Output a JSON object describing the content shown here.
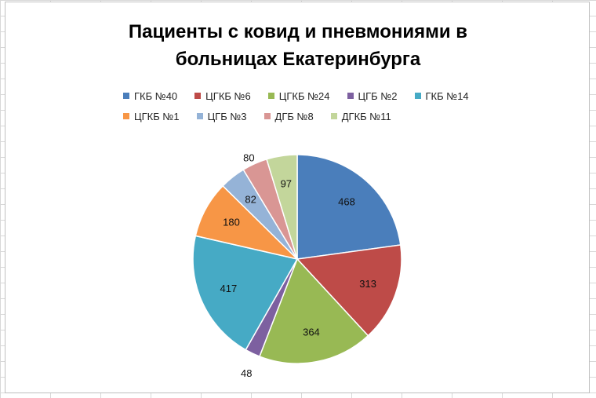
{
  "chart_data": {
    "type": "pie",
    "title": "Пациенты с ковид и пневмониями в больницах Екатеринбурга",
    "categories": [
      "ГКБ №40",
      "ЦГКБ №6",
      "ЦГКБ №24",
      "ЦГБ №2",
      "ГКБ №14",
      "ЦГКБ №1",
      "ЦГБ №3",
      "ДГБ №8",
      "ДГКБ №11"
    ],
    "values": [
      468,
      313,
      364,
      48,
      417,
      180,
      82,
      80,
      97
    ],
    "colors": [
      "#4a7ebb",
      "#be4b48",
      "#98b954",
      "#7d60a0",
      "#46aac5",
      "#f79646",
      "#95b3d7",
      "#d99694",
      "#c3d69b"
    ],
    "legend_position": "top"
  }
}
